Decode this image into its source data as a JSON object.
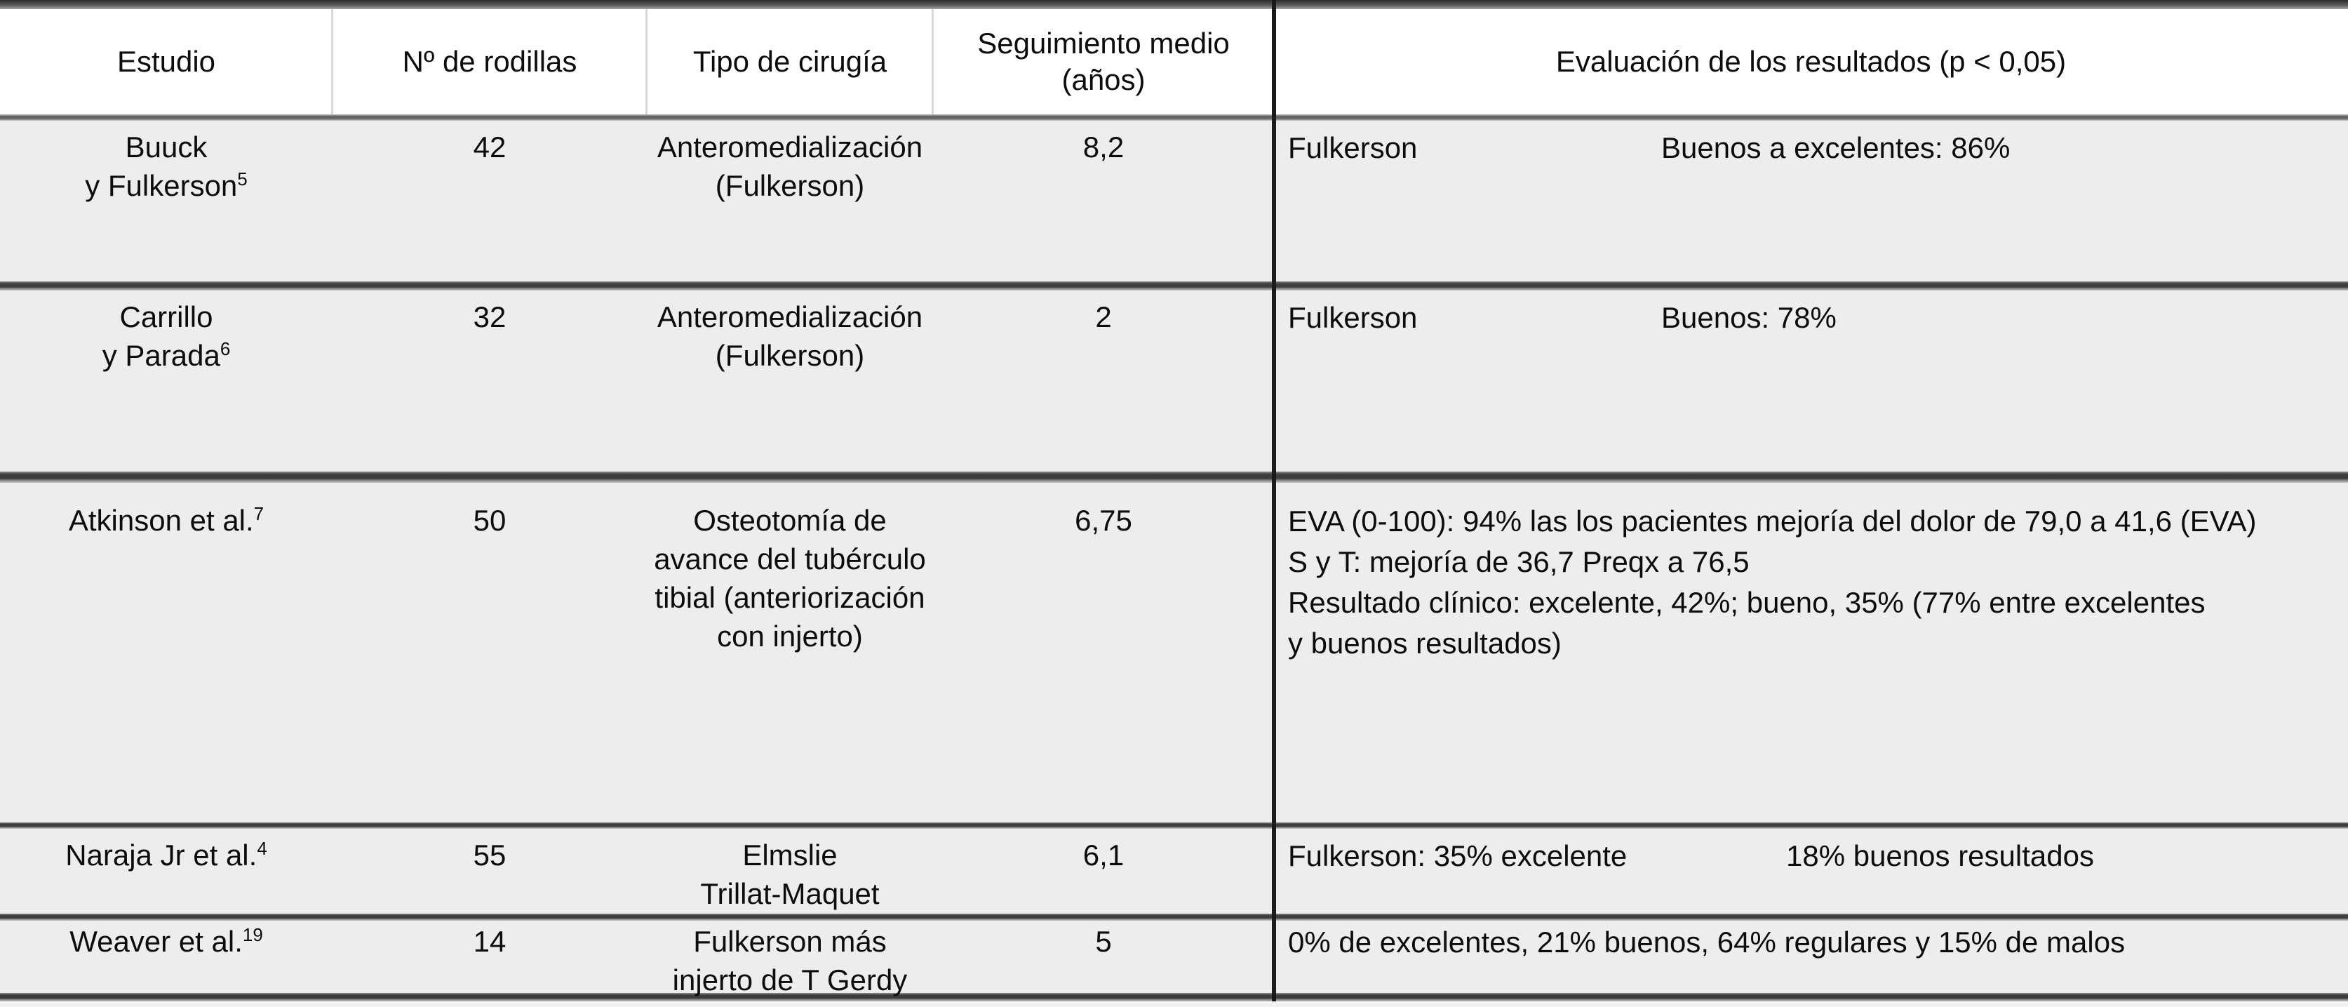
{
  "table": {
    "headers": {
      "study": "Estudio",
      "knees": "Nº de rodillas",
      "surgery": "Tipo de cirugía",
      "followup": "Seguimiento medio\n(años)",
      "evaluation": "Evaluación de los resultados (p < 0,05)"
    },
    "rows": [
      {
        "study_lines": "Buuck\ny Fulkerson",
        "study_sup": "5",
        "knees": "42",
        "surgery_lines": "Anteromedialización\n(Fulkerson)",
        "followup": "8,2",
        "eval_label": "Fulkerson",
        "eval_value": "Buenos a excelentes: 86%"
      },
      {
        "study_lines": "Carrillo\ny Parada",
        "study_sup": "6",
        "knees": "32",
        "surgery_lines": "Anteromedialización\n(Fulkerson)",
        "followup": "2",
        "eval_label": "Fulkerson",
        "eval_value": "Buenos: 78%"
      },
      {
        "study_lines": "Atkinson et al.",
        "study_sup": "7",
        "knees": "50",
        "surgery_lines": "Osteotomía de\navance del tubérculo\ntibial (anteriorización\ncon injerto)",
        "followup": "6,75",
        "eval_text": "EVA (0-100): 94% las los pacientes mejoría del dolor de 79,0 a 41,6 (EVA)\nS y T: mejoría de 36,7 Preqx a 76,5\nResultado clínico: excelente, 42%; bueno, 35% (77% entre excelentes\ny buenos resultados)"
      },
      {
        "study_lines": "Naraja Jr et al.",
        "study_sup": "4",
        "knees": "55",
        "surgery_lines": "Elmslie\nTrillat-Maquet",
        "followup": "6,1",
        "eval_label": "Fulkerson: 35% excelente",
        "eval_value": "18% buenos resultados"
      },
      {
        "study_lines": "Weaver et al.",
        "study_sup": "19",
        "knees": "14",
        "surgery_lines": "Fulkerson más\ninjerto de T Gerdy",
        "followup": "5",
        "eval_text": "0% de excelentes, 21% buenos, 64% regulares y 15% de malos"
      }
    ]
  },
  "colors": {
    "row_background": "#ededed",
    "header_background": "#ffffff",
    "separator_dark": "#3d3d3d",
    "divider_black": "#1b1b1b",
    "text": "#0d0d0d"
  }
}
